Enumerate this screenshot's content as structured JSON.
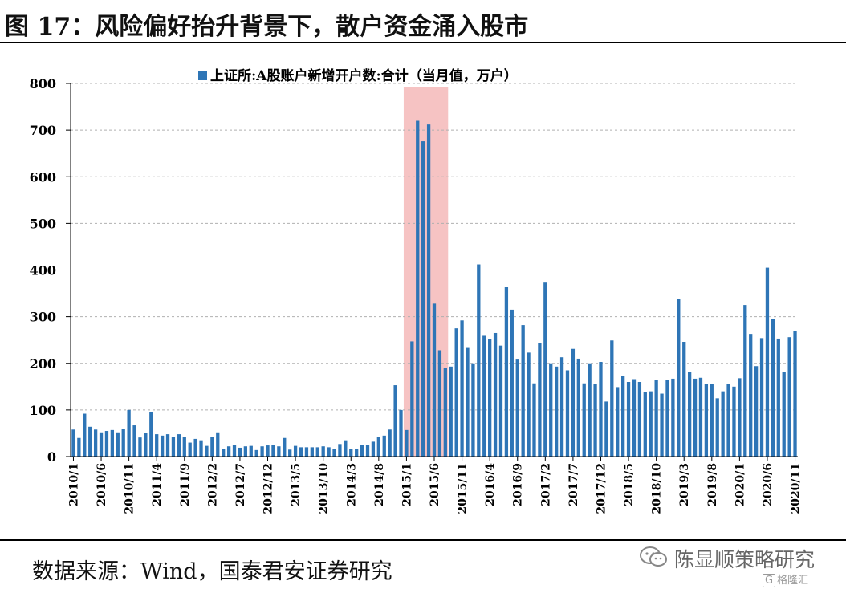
{
  "header": {
    "title": "图 17：风险偏好抬升背景下，散户资金涌入股市"
  },
  "footer": {
    "source": "数据来源：Wind，国泰君安证券研究"
  },
  "watermark": {
    "text": "陈显顺策略研究",
    "sub_icon": "G",
    "sub_text": "格隆汇"
  },
  "colors": {
    "bar": "#2e75b6",
    "highlight": "#f4b4b4",
    "grid": "#b0b0b0",
    "axis": "#000000"
  },
  "chart_data": {
    "type": "bar",
    "legend": "上证所:A股账户新增开户数:合计（当月值，万户）",
    "legend_position": "top",
    "ylim": [
      0,
      800
    ],
    "yticks": [
      0,
      100,
      200,
      300,
      400,
      500,
      600,
      700,
      800
    ],
    "xtick_labels": [
      "2010/1",
      "2010/6",
      "2010/11",
      "2011/4",
      "2011/9",
      "2012/2",
      "2012/7",
      "2012/12",
      "2013/5",
      "2013/10",
      "2014/3",
      "2014/8",
      "2015/1",
      "2015/6",
      "2015/11",
      "2016/4",
      "2016/9",
      "2017/2",
      "2017/7",
      "2017/12",
      "2018/5",
      "2018/10",
      "2019/3",
      "2019/8",
      "2020/1",
      "2020/6",
      "2020/11"
    ],
    "xtick_every": 5,
    "grid": "horizontal",
    "highlight_range": [
      "2015/1",
      "2015/9"
    ],
    "start": "2010/1",
    "values": [
      58,
      40,
      92,
      64,
      58,
      52,
      55,
      57,
      52,
      60,
      100,
      67,
      41,
      50,
      95,
      48,
      45,
      48,
      42,
      48,
      42,
      30,
      38,
      35,
      23,
      43,
      52,
      17,
      22,
      25,
      19,
      22,
      23,
      14,
      22,
      24,
      25,
      22,
      40,
      15,
      23,
      20,
      20,
      20,
      20,
      22,
      20,
      16,
      27,
      35,
      17,
      16,
      25,
      25,
      32,
      43,
      45,
      58,
      153,
      100,
      57,
      247,
      720,
      676,
      712,
      328,
      228,
      190,
      193,
      275,
      292,
      233,
      200,
      412,
      259,
      252,
      265,
      238,
      363,
      315,
      208,
      282,
      223,
      157,
      244,
      373,
      200,
      193,
      213,
      185,
      231,
      210,
      157,
      200,
      156,
      203,
      118,
      249,
      149,
      173,
      160,
      166,
      160,
      138,
      140,
      164,
      135,
      165,
      167,
      338,
      246,
      181,
      167,
      169,
      156,
      155,
      125,
      140,
      155,
      150,
      168,
      325,
      263,
      194,
      254,
      405,
      295,
      253,
      182,
      256,
      270
    ]
  }
}
